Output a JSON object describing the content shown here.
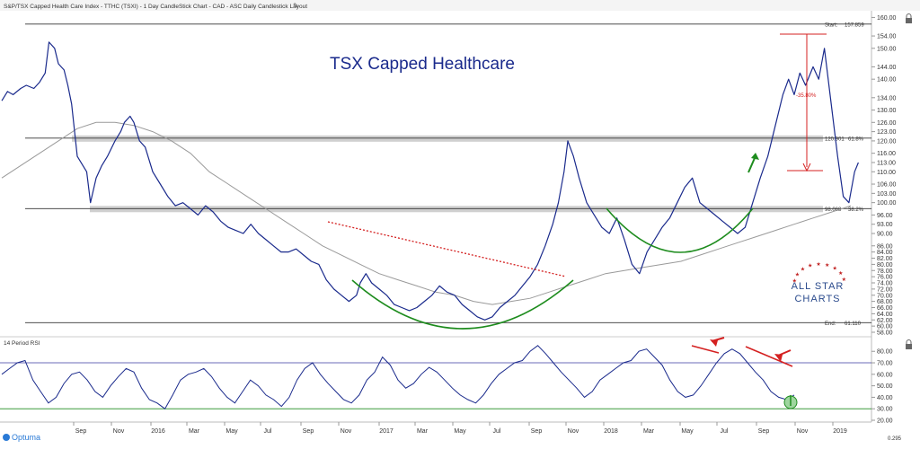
{
  "header": {
    "title": "S&P/TSX Capped Health Care Index - TTHC (TSXI) - 1 Day CandleStick Chart - CAD - ASC Daily Candlestick Layout"
  },
  "chart_data": {
    "type": "line",
    "title": "TSX Capped Healthcare",
    "price_panel": {
      "ylim": [
        58,
        161
      ],
      "y_ticks": [
        "160.00",
        "154.00",
        "150.00",
        "144.00",
        "140.00",
        "134.00",
        "130.00",
        "126.00",
        "123.00",
        "120.00",
        "116.00",
        "113.00",
        "110.00",
        "106.00",
        "103.00",
        "100.00",
        "96.00",
        "93.00",
        "90.00",
        "86.00",
        "84.00",
        "82.00",
        "80.00",
        "78.00",
        "76.00",
        "74.00",
        "72.00",
        "70.00",
        "68.00",
        "66.00",
        "64.00",
        "62.00",
        "60.00",
        "58.00"
      ],
      "series": [
        {
          "values": [
            [
              0,
              133
            ],
            [
              0.3,
              136
            ],
            [
              0.6,
              135
            ],
            [
              1,
              137
            ],
            [
              1.3,
              138
            ],
            [
              1.7,
              137
            ],
            [
              2,
              139
            ],
            [
              2.3,
              142
            ],
            [
              2.5,
              152
            ],
            [
              2.8,
              150
            ],
            [
              3,
              145
            ],
            [
              3.3,
              143
            ],
            [
              3.5,
              138
            ],
            [
              3.7,
              132
            ],
            [
              4,
              115
            ],
            [
              4.3,
              112
            ],
            [
              4.5,
              110
            ],
            [
              4.7,
              100
            ],
            [
              5,
              108
            ],
            [
              5.3,
              112
            ],
            [
              5.6,
              115
            ],
            [
              6,
              120
            ],
            [
              6.3,
              123
            ],
            [
              6.5,
              126
            ],
            [
              6.8,
              128
            ],
            [
              7,
              126
            ],
            [
              7.3,
              120
            ],
            [
              7.6,
              118
            ],
            [
              8,
              110
            ],
            [
              8.4,
              106
            ],
            [
              8.8,
              102
            ],
            [
              9.2,
              99
            ],
            [
              9.6,
              100
            ],
            [
              10,
              98
            ],
            [
              10.4,
              96
            ],
            [
              10.8,
              99
            ],
            [
              11.2,
              97
            ],
            [
              11.6,
              94
            ],
            [
              12,
              92
            ],
            [
              12.4,
              91
            ],
            [
              12.8,
              90
            ],
            [
              13.2,
              93
            ],
            [
              13.6,
              90
            ],
            [
              14,
              88
            ],
            [
              14.4,
              86
            ],
            [
              14.8,
              84
            ],
            [
              15.2,
              84
            ],
            [
              15.6,
              85
            ],
            [
              16,
              83
            ],
            [
              16.4,
              81
            ],
            [
              16.8,
              80
            ],
            [
              17.2,
              75
            ],
            [
              17.6,
              72
            ],
            [
              18,
              70
            ],
            [
              18.4,
              68
            ],
            [
              18.8,
              70
            ],
            [
              19,
              74
            ],
            [
              19.3,
              77
            ],
            [
              19.6,
              74
            ],
            [
              20,
              72
            ],
            [
              20.4,
              70
            ],
            [
              20.8,
              67
            ],
            [
              21.2,
              66
            ],
            [
              21.6,
              65
            ],
            [
              22,
              66
            ],
            [
              22.4,
              68
            ],
            [
              22.8,
              70
            ],
            [
              23.2,
              73
            ],
            [
              23.6,
              71
            ],
            [
              24,
              70
            ],
            [
              24.4,
              67
            ],
            [
              24.8,
              65
            ],
            [
              25.2,
              63
            ],
            [
              25.6,
              62
            ],
            [
              26,
              63
            ],
            [
              26.4,
              66
            ],
            [
              26.8,
              68
            ],
            [
              27.2,
              70
            ],
            [
              27.6,
              73
            ],
            [
              28,
              76
            ],
            [
              28.4,
              80
            ],
            [
              28.8,
              86
            ],
            [
              29.2,
              93
            ],
            [
              29.5,
              100
            ],
            [
              29.8,
              110
            ],
            [
              30,
              120
            ],
            [
              30.3,
              115
            ],
            [
              30.6,
              108
            ],
            [
              31,
              100
            ],
            [
              31.4,
              96
            ],
            [
              31.8,
              92
            ],
            [
              32.2,
              90
            ],
            [
              32.6,
              95
            ],
            [
              33,
              88
            ],
            [
              33.4,
              80
            ],
            [
              33.8,
              77
            ],
            [
              34.2,
              84
            ],
            [
              34.6,
              88
            ],
            [
              35,
              92
            ],
            [
              35.4,
              95
            ],
            [
              35.8,
              100
            ],
            [
              36.2,
              105
            ],
            [
              36.6,
              108
            ],
            [
              37,
              100
            ],
            [
              37.4,
              98
            ],
            [
              37.8,
              96
            ],
            [
              38.2,
              94
            ],
            [
              38.6,
              92
            ],
            [
              39,
              90
            ],
            [
              39.4,
              92
            ],
            [
              39.8,
              100
            ],
            [
              40.2,
              108
            ],
            [
              40.6,
              115
            ],
            [
              41,
              125
            ],
            [
              41.4,
              135
            ],
            [
              41.7,
              140
            ],
            [
              42,
              135
            ],
            [
              42.3,
              142
            ],
            [
              42.6,
              138
            ],
            [
              43,
              144
            ],
            [
              43.3,
              140
            ],
            [
              43.6,
              150
            ],
            [
              44,
              130
            ],
            [
              44.3,
              115
            ],
            [
              44.6,
              102
            ],
            [
              44.9,
              100
            ],
            [
              45.2,
              110
            ],
            [
              45.4,
              113
            ]
          ]
        },
        {
          "values": [
            [
              0,
              108
            ],
            [
              1,
              112
            ],
            [
              2,
              116
            ],
            [
              3,
              120
            ],
            [
              4,
              124
            ],
            [
              5,
              126
            ],
            [
              6,
              126
            ],
            [
              7,
              125
            ],
            [
              8,
              123
            ],
            [
              9,
              120
            ],
            [
              10,
              116
            ],
            [
              11,
              110
            ],
            [
              12,
              106
            ],
            [
              13,
              102
            ],
            [
              14,
              98
            ],
            [
              15,
              94
            ],
            [
              16,
              90
            ],
            [
              17,
              86
            ],
            [
              18,
              83
            ],
            [
              19,
              80
            ],
            [
              20,
              77
            ],
            [
              21,
              75
            ],
            [
              22,
              73
            ],
            [
              23,
              71
            ],
            [
              24,
              70
            ],
            [
              25,
              68
            ],
            [
              26,
              67
            ],
            [
              27,
              68
            ],
            [
              28,
              69
            ],
            [
              29,
              71
            ],
            [
              30,
              73
            ],
            [
              31,
              75
            ],
            [
              32,
              77
            ],
            [
              33,
              78
            ],
            [
              34,
              79
            ],
            [
              35,
              80
            ],
            [
              36,
              81
            ],
            [
              37,
              83
            ],
            [
              38,
              85
            ],
            [
              39,
              87
            ],
            [
              40,
              89
            ],
            [
              41,
              91
            ],
            [
              42,
              93
            ],
            [
              43,
              95
            ],
            [
              44,
              97
            ],
            [
              45,
              99
            ]
          ]
        }
      ],
      "levels": [
        {
          "label": "Start:",
          "value": "157.859"
        },
        {
          "label": "",
          "value": "120.901",
          "fib": "61.8%"
        },
        {
          "label": "",
          "value": "98.068",
          "fib": "38.2%"
        },
        {
          "label": "End:",
          "value": "61.110"
        }
      ],
      "annotations": {
        "drop": "-35.80%"
      }
    },
    "rsi_panel": {
      "label": "14 Period RSI",
      "ylim": [
        20,
        88
      ],
      "y_ticks": [
        "80.00",
        "70.00",
        "60.00",
        "50.00",
        "40.00",
        "30.00",
        "20.00"
      ],
      "overbought": 70,
      "oversold": 30,
      "values": [
        60,
        65,
        70,
        72,
        55,
        45,
        35,
        40,
        52,
        60,
        62,
        55,
        45,
        40,
        50,
        58,
        65,
        62,
        48,
        38,
        35,
        30,
        42,
        55,
        60,
        62,
        65,
        58,
        48,
        40,
        35,
        45,
        55,
        50,
        42,
        38,
        32,
        40,
        55,
        65,
        70,
        60,
        52,
        45,
        38,
        35,
        42,
        55,
        62,
        75,
        68,
        55,
        48,
        52,
        60,
        66,
        62,
        55,
        48,
        42,
        38,
        35,
        42,
        52,
        60,
        65,
        70,
        72,
        80,
        85,
        78,
        70,
        62,
        55,
        48,
        40,
        45,
        55,
        60,
        65,
        70,
        72,
        80,
        82,
        75,
        68,
        55,
        45,
        40,
        42,
        50,
        60,
        70,
        78,
        82,
        78,
        70,
        62,
        55,
        45,
        40,
        38,
        42
      ]
    },
    "x_ticks": [
      "Sep",
      "Nov",
      "2016",
      "Mar",
      "May",
      "Jul",
      "Sep",
      "Nov",
      "2017",
      "Mar",
      "May",
      "Jul",
      "Sep",
      "Nov",
      "2018",
      "Mar",
      "May",
      "Jul",
      "Sep",
      "Nov",
      "2019"
    ]
  },
  "footer": {
    "brand": "Optuma",
    "zoom": "0.295"
  },
  "watermark": {
    "line1": "ALL STAR",
    "line2": "CHARTS"
  },
  "colors": {
    "price": "#1a2a8c",
    "ma": "#9a9a9a",
    "green": "#1e8c1e",
    "red": "#d42020",
    "band": "#c8c8c8"
  }
}
